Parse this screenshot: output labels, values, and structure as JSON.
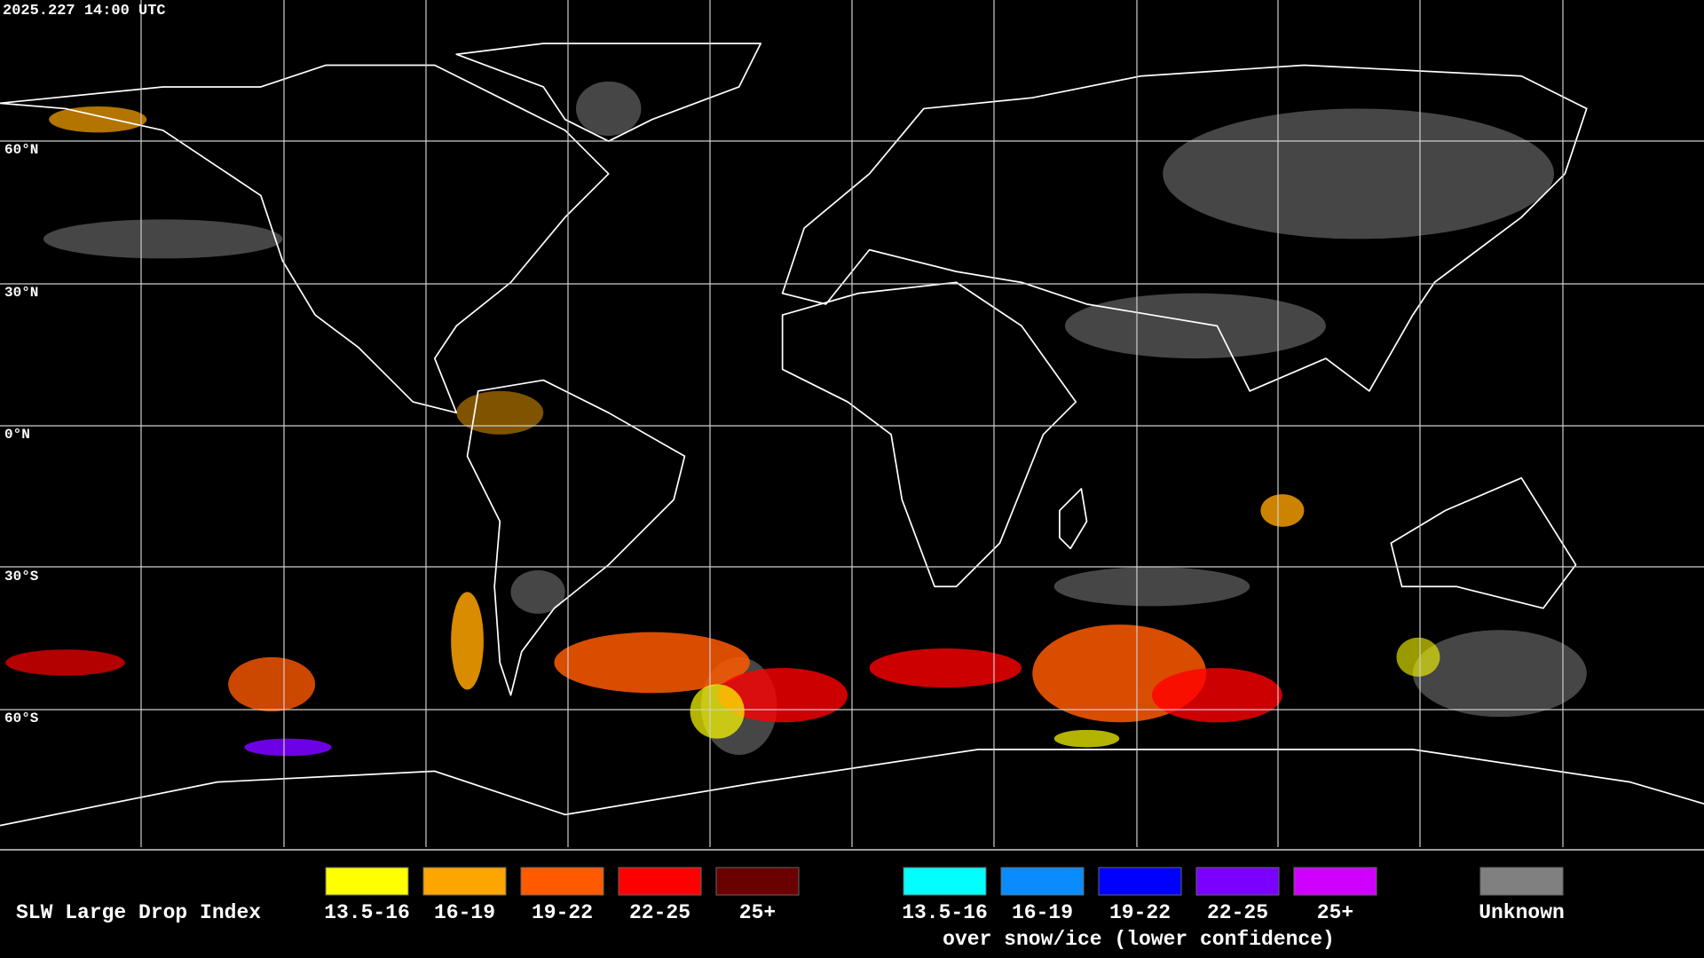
{
  "header": {
    "timestamp": "2025.227 14:00 UTC"
  },
  "map": {
    "lat_labels": [
      "60°N",
      "30°N",
      "0°N",
      "30°S",
      "60°S"
    ]
  },
  "legend": {
    "title": "SLW Large Drop Index",
    "groups": [
      {
        "items": [
          {
            "label": "13.5-16",
            "color": "#ffff00"
          },
          {
            "label": "16-19",
            "color": "#ffa500"
          },
          {
            "label": "19-22",
            "color": "#ff5a00"
          },
          {
            "label": "22-25",
            "color": "#ff0000"
          },
          {
            "label": "25+",
            "color": "#6a0000"
          }
        ]
      },
      {
        "items": [
          {
            "label": "13.5-16",
            "color": "#00ffff"
          },
          {
            "label": "16-19",
            "color": "#0a8cff"
          },
          {
            "label": "19-22",
            "color": "#0000ff"
          },
          {
            "label": "22-25",
            "color": "#7a00ff"
          },
          {
            "label": "25+",
            "color": "#d000ff"
          }
        ],
        "caption": "over snow/ice (lower confidence)"
      }
    ],
    "unknown": {
      "label": "Unknown",
      "color": "#808080"
    }
  }
}
